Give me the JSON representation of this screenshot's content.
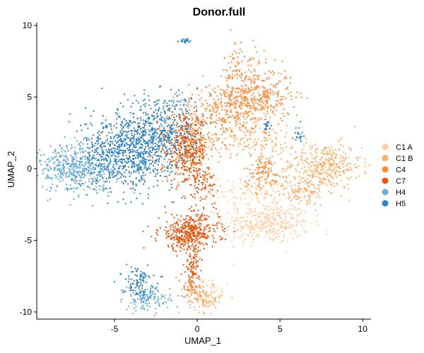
{
  "chart_data": {
    "type": "scatter",
    "title": "Donor.full",
    "xlabel": "UMAP_1",
    "ylabel": "UMAP_2",
    "xlim": [
      -9.7,
      10.5
    ],
    "ylim": [
      -10.5,
      10.2
    ],
    "x_ticks": [
      -5,
      0,
      5,
      10
    ],
    "x_tick_labels": [
      "-5",
      "0",
      "5",
      "10"
    ],
    "y_ticks": [
      -10,
      -5,
      0,
      5,
      10
    ],
    "y_tick_labels": [
      "-10",
      "-5",
      "0",
      "5",
      "10"
    ],
    "grid": false,
    "legend_position": "right",
    "series": [
      {
        "name": "C1 A",
        "color": "#fdd0a2",
        "clusters": [
          {
            "cx": 4.2,
            "cy": -3.8,
            "sx": 1.3,
            "sy": 0.7,
            "n": 420
          },
          {
            "cx": 3.5,
            "cy": -1.6,
            "sx": 1.3,
            "sy": 0.5,
            "n": 120
          },
          {
            "cx": 0.6,
            "cy": -8.6,
            "sx": 0.4,
            "sy": 0.4,
            "n": 50
          }
        ]
      },
      {
        "name": "C1 B",
        "color": "#fdae6b",
        "clusters": [
          {
            "cx": 7.7,
            "cy": 0.2,
            "sx": 1.1,
            "sy": 0.8,
            "n": 360
          },
          {
            "cx": 6.3,
            "cy": -1.6,
            "sx": 0.8,
            "sy": 0.5,
            "n": 120
          },
          {
            "cx": 3.3,
            "cy": 2.0,
            "sx": 1.5,
            "sy": 0.5,
            "n": 140
          },
          {
            "cx": 0.5,
            "cy": -9.2,
            "sx": 0.5,
            "sy": 0.4,
            "n": 70
          }
        ]
      },
      {
        "name": "C4",
        "color": "#fd8d3c",
        "clusters": [
          {
            "cx": 3.5,
            "cy": 5.0,
            "sx": 1.1,
            "sy": 1.0,
            "n": 420
          },
          {
            "cx": 1.5,
            "cy": 4.0,
            "sx": 1.0,
            "sy": 1.0,
            "n": 220
          },
          {
            "cx": 2.6,
            "cy": 7.2,
            "sx": 0.5,
            "sy": 0.9,
            "n": 70
          },
          {
            "cx": 4.0,
            "cy": -0.2,
            "sx": 0.6,
            "sy": 0.6,
            "n": 120
          },
          {
            "cx": -0.6,
            "cy": 1.8,
            "sx": 1.0,
            "sy": 1.2,
            "n": 260
          },
          {
            "cx": -0.2,
            "cy": -8.4,
            "sx": 0.5,
            "sy": 0.5,
            "n": 70
          }
        ]
      },
      {
        "name": "C7",
        "color": "#e6550d",
        "clusters": [
          {
            "cx": -0.5,
            "cy": -4.5,
            "sx": 0.9,
            "sy": 0.6,
            "n": 420
          },
          {
            "cx": -0.6,
            "cy": 1.3,
            "sx": 0.6,
            "sy": 1.2,
            "n": 320
          },
          {
            "cx": -0.3,
            "cy": -6.8,
            "sx": 0.2,
            "sy": 0.6,
            "n": 80
          },
          {
            "cx": 0.3,
            "cy": -1.2,
            "sx": 0.4,
            "sy": 0.9,
            "n": 90
          }
        ]
      },
      {
        "name": "H4",
        "color": "#6baed6",
        "clusters": [
          {
            "cx": -7.2,
            "cy": 0.0,
            "sx": 1.3,
            "sy": 0.8,
            "n": 520
          },
          {
            "cx": -3.0,
            "cy": -9.1,
            "sx": 0.7,
            "sy": 0.4,
            "n": 140
          },
          {
            "cx": -1.0,
            "cy": 4.6,
            "sx": 0.3,
            "sy": 0.4,
            "n": 30
          }
        ]
      },
      {
        "name": "H5",
        "color": "#3182bd",
        "clusters": [
          {
            "cx": -4.2,
            "cy": 1.2,
            "sx": 1.4,
            "sy": 1.3,
            "n": 800
          },
          {
            "cx": -2.2,
            "cy": 2.8,
            "sx": 1.1,
            "sy": 1.3,
            "n": 350
          },
          {
            "cx": -3.6,
            "cy": -7.9,
            "sx": 0.5,
            "sy": 0.5,
            "n": 100
          },
          {
            "cx": -0.8,
            "cy": 9.0,
            "sx": 0.2,
            "sy": 0.1,
            "n": 20
          },
          {
            "cx": 6.2,
            "cy": 2.4,
            "sx": 0.15,
            "sy": 0.3,
            "n": 20
          },
          {
            "cx": 4.2,
            "cy": 3.0,
            "sx": 0.1,
            "sy": 0.2,
            "n": 15
          }
        ]
      }
    ]
  }
}
